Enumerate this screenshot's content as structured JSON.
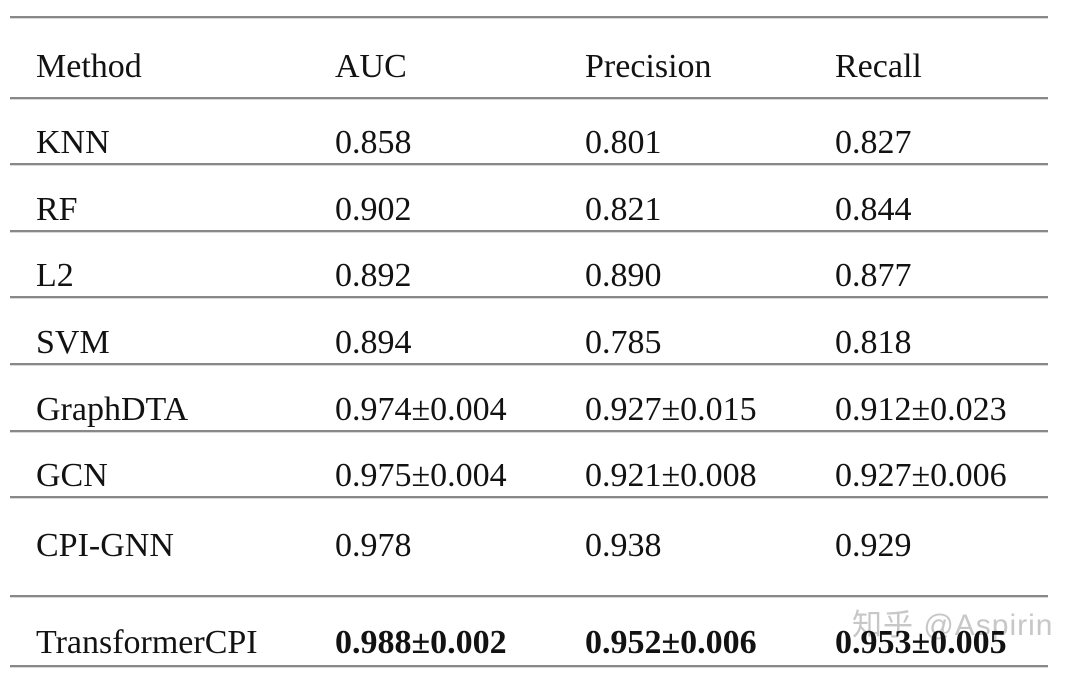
{
  "table": {
    "columns": [
      "Method",
      "AUC",
      "Precision",
      "Recall"
    ],
    "rows": [
      {
        "method": "KNN",
        "auc": "0.858",
        "precision": "0.801",
        "recall": "0.827"
      },
      {
        "method": "RF",
        "auc": "0.902",
        "precision": "0.821",
        "recall": "0.844"
      },
      {
        "method": "L2",
        "auc": "0.892",
        "precision": "0.890",
        "recall": "0.877"
      },
      {
        "method": "SVM",
        "auc": "0.894",
        "precision": "0.785",
        "recall": "0.818"
      },
      {
        "method": "GraphDTA",
        "auc": "0.974±0.004",
        "precision": "0.927±0.015",
        "recall": "0.912±0.023"
      },
      {
        "method": "GCN",
        "auc": "0.975±0.004",
        "precision": "0.921±0.008",
        "recall": "0.927±0.006"
      },
      {
        "method": "CPI-GNN",
        "auc": "0.978",
        "precision": "0.938",
        "recall": "0.929"
      },
      {
        "method": "TransformerCPI",
        "auc": "0.988±0.002",
        "precision": "0.952±0.006",
        "recall": "0.953±0.005",
        "bold": true
      }
    ]
  },
  "watermark": "知乎 @Aspirin",
  "colors": {
    "background": "#ffffff",
    "text": "#121212",
    "separator_dark": "#888888",
    "separator_light": "#d8d8d8",
    "watermark": "#c7c7c7"
  }
}
